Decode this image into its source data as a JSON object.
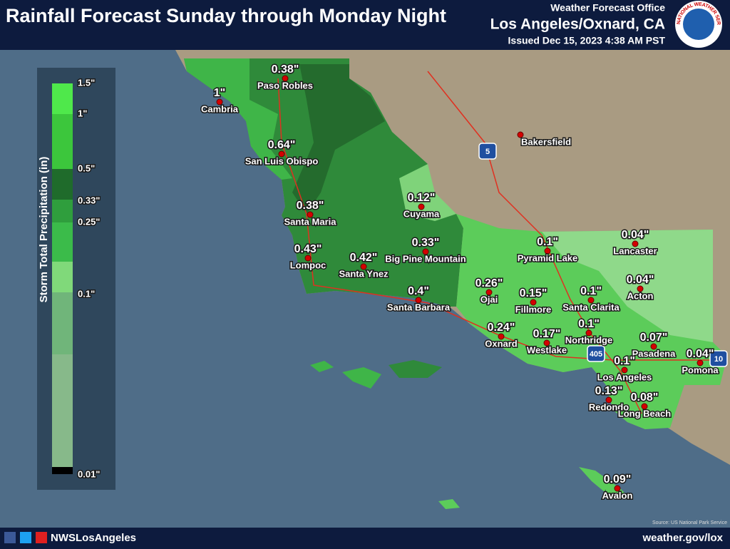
{
  "header": {
    "title": "Rainfall Forecast Sunday through Monday Night",
    "office_label": "Weather Forecast Office",
    "office_name": "Los Angeles/Oxnard, CA",
    "issued": "Issued Dec 15, 2023 4:38 AM PST",
    "logo_text": "NATIONAL WEATHER SERVICE"
  },
  "legend": {
    "title": "Storm Total Precipitation (in)",
    "labels": [
      "1.5\"",
      "1\"",
      "0.5\"",
      "0.33\"",
      "0.25\"",
      "0.1\"",
      "0.01\""
    ]
  },
  "locations": [
    {
      "name": "Paso Robles",
      "amount": "0.38\""
    },
    {
      "name": "Cambria",
      "amount": "1\""
    },
    {
      "name": "San Luis Obispo",
      "amount": "0.64\""
    },
    {
      "name": "Santa Maria",
      "amount": "0.38\""
    },
    {
      "name": "Lompoc",
      "amount": "0.43\""
    },
    {
      "name": "Santa Ynez",
      "amount": "0.42\""
    },
    {
      "name": "Big Pine Mountain",
      "amount": "0.33\""
    },
    {
      "name": "Santa Barbara",
      "amount": "0.4\""
    },
    {
      "name": "Cuyama",
      "amount": "0.12\""
    },
    {
      "name": "Bakersfield"
    },
    {
      "name": "Pyramid Lake",
      "amount": "0.1\""
    },
    {
      "name": "Lancaster",
      "amount": "0.04\""
    },
    {
      "name": "Acton",
      "amount": "0.04\""
    },
    {
      "name": "Santa Clarita",
      "amount": "0.1\""
    },
    {
      "name": "Ojai",
      "amount": "0.26\""
    },
    {
      "name": "Fillmore",
      "amount": "0.15\""
    },
    {
      "name": "Oxnard",
      "amount": "0.24\""
    },
    {
      "name": "Westlake",
      "amount": "0.17\""
    },
    {
      "name": "Northridge",
      "amount": "0.1\""
    },
    {
      "name": "Pasadena",
      "amount": "0.07\""
    },
    {
      "name": "Pomona",
      "amount": "0.04\""
    },
    {
      "name": "Los Angeles",
      "amount": "0.1\""
    },
    {
      "name": "Redondo",
      "amount": "0.13\""
    },
    {
      "name": "Long Beach",
      "amount": "0.08\""
    },
    {
      "name": "Avalon",
      "amount": "0.09\""
    }
  ],
  "highways": [
    "5",
    "405",
    "10"
  ],
  "footer": {
    "social_handle": "NWSLosAngeles",
    "website": "weather.gov/lox"
  },
  "source": "Source: US National Park Service"
}
